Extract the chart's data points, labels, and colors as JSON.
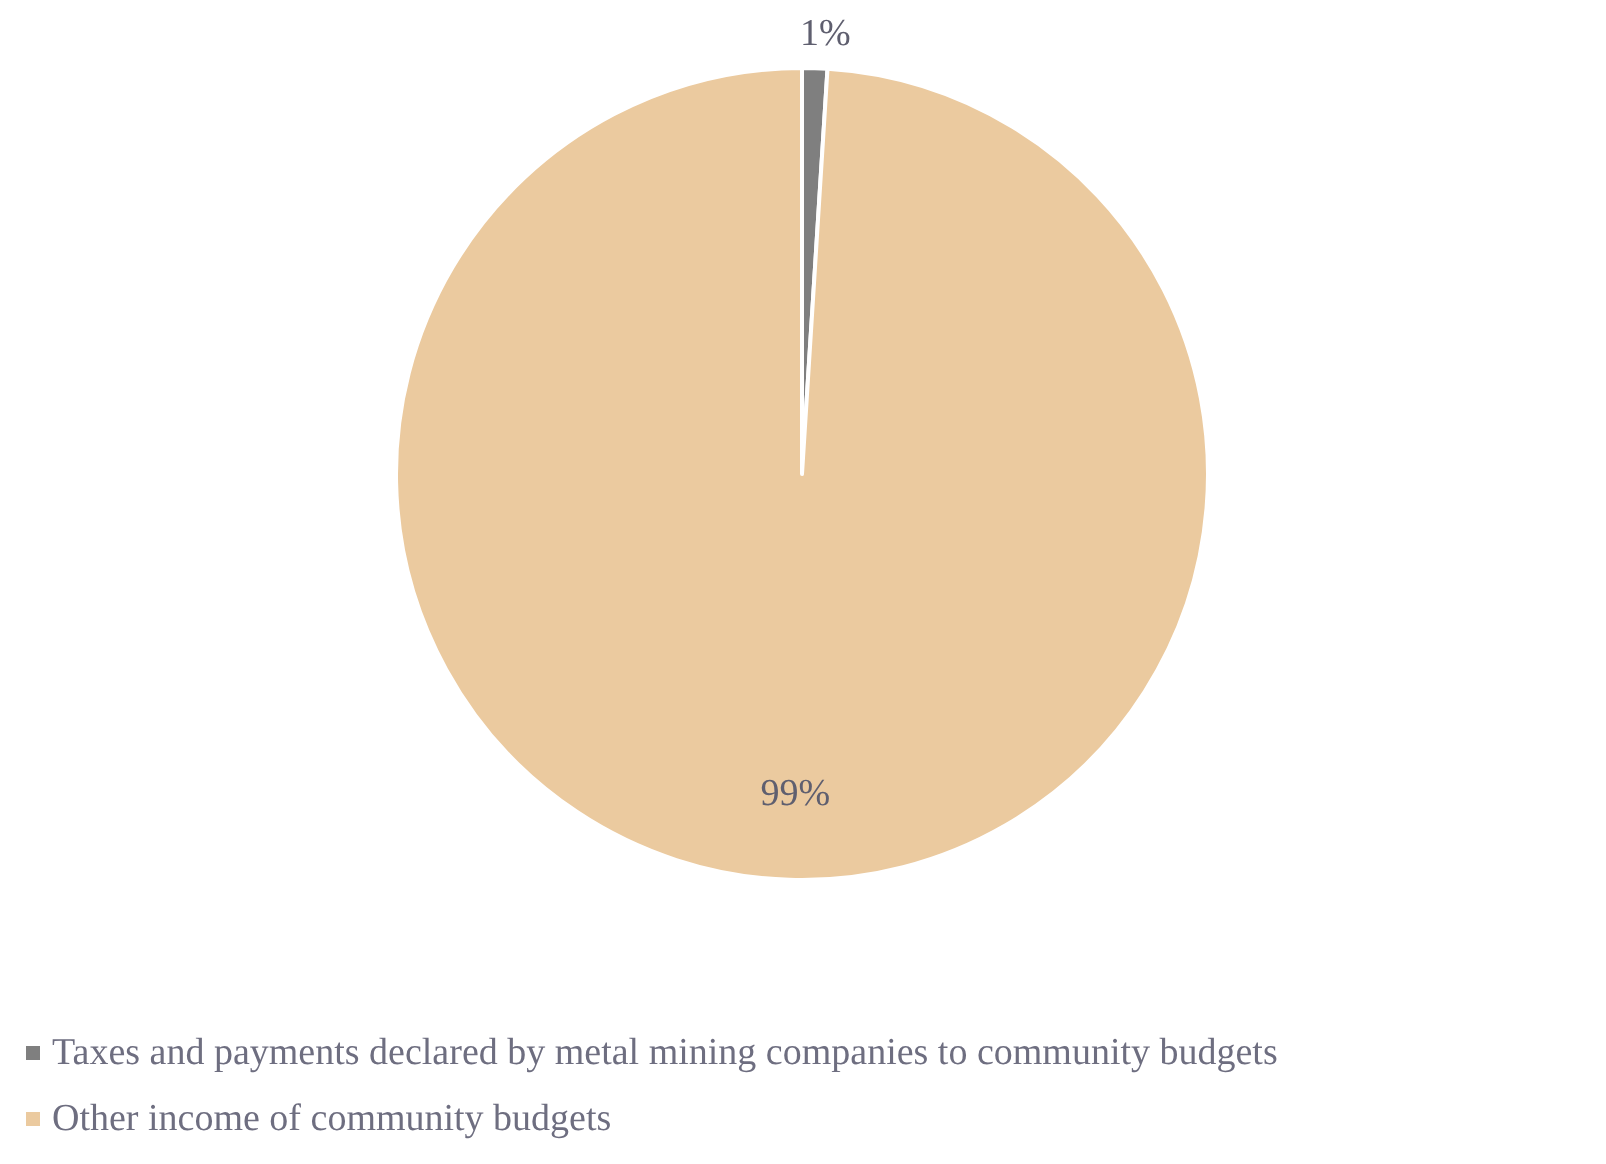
{
  "chart_data": {
    "type": "pie",
    "categories": [
      "Taxes and payments declared by metal mining companies to community budgets",
      "Other income of community budgets"
    ],
    "values": [
      1,
      99
    ],
    "colors": [
      "#7f7f7f",
      "#ebca9f"
    ],
    "value_labels": [
      "1%",
      "99%"
    ],
    "legend": "bottom left"
  }
}
